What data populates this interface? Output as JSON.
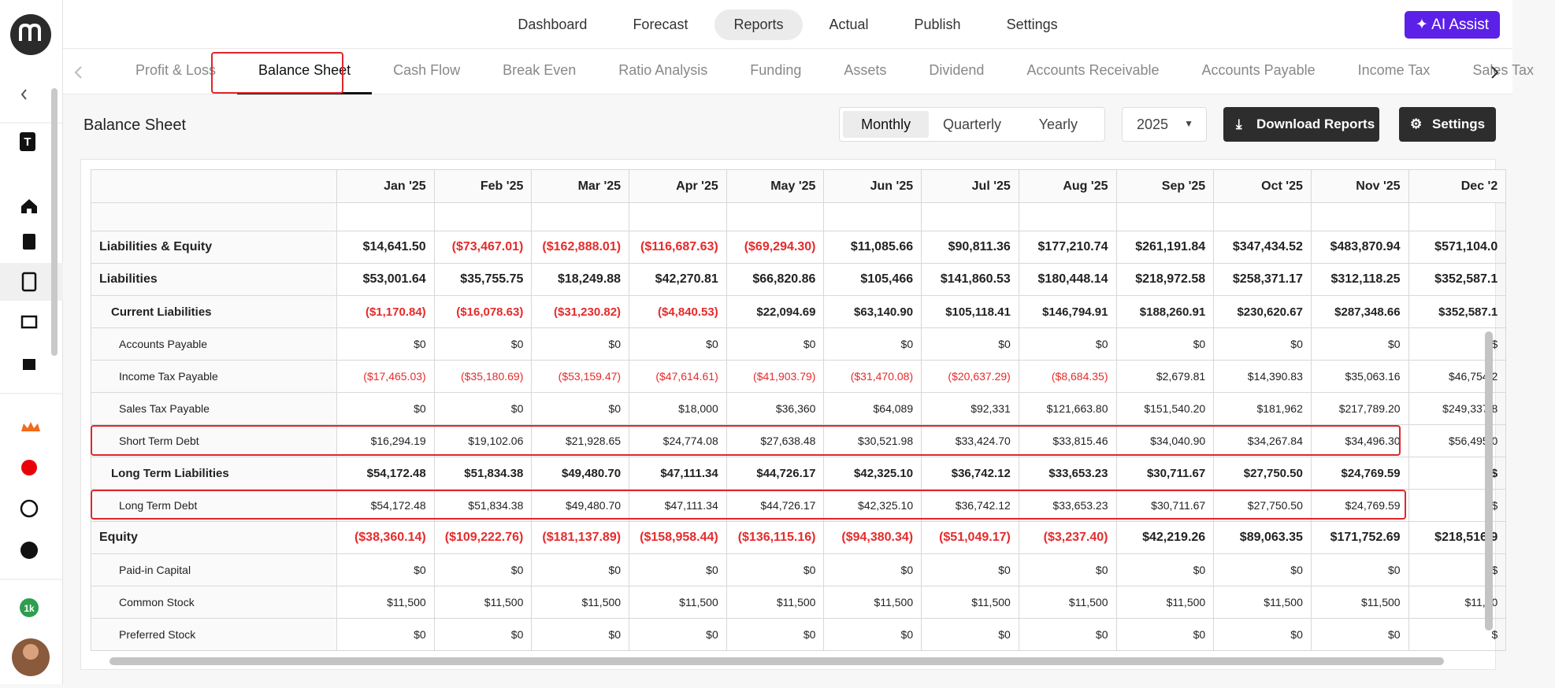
{
  "nav": [
    "Dashboard",
    "Forecast",
    "Reports",
    "Actual",
    "Publish",
    "Settings"
  ],
  "active_nav": 2,
  "ai_assist": "AI Assist",
  "sidebar": {
    "workspace": "T",
    "badge": "1k"
  },
  "tabs": [
    "Profit & Loss",
    "Balance Sheet",
    "Cash Flow",
    "Break Even",
    "Ratio Analysis",
    "Funding",
    "Assets",
    "Dividend",
    "Accounts Receivable",
    "Accounts Payable",
    "Income Tax",
    "Sales Tax"
  ],
  "active_tab": 1,
  "page_title": "Balance Sheet",
  "periods": [
    "Monthly",
    "Quarterly",
    "Yearly"
  ],
  "active_period": 0,
  "year": "2025",
  "download_button": "Download Reports",
  "settings_button": "Settings",
  "table": {
    "columns": [
      "Jan '25",
      "Feb '25",
      "Mar '25",
      "Apr '25",
      "May '25",
      "Jun '25",
      "Jul '25",
      "Aug '25",
      "Sep '25",
      "Oct '25",
      "Nov '25",
      "Dec '2"
    ],
    "rows": [
      {
        "label": "Liabilities & Equity",
        "level": 0,
        "cells": [
          "$14,641.50",
          "($73,467.01)",
          "($162,888.01)",
          "($116,687.63)",
          "($69,294.30)",
          "$11,085.66",
          "$90,811.36",
          "$177,210.74",
          "$261,191.84",
          "$347,434.52",
          "$483,870.94",
          "$571,104.0"
        ]
      },
      {
        "label": "Liabilities",
        "level": 0,
        "cells": [
          "$53,001.64",
          "$35,755.75",
          "$18,249.88",
          "$42,270.81",
          "$66,820.86",
          "$105,466",
          "$141,860.53",
          "$180,448.14",
          "$218,972.58",
          "$258,371.17",
          "$312,118.25",
          "$352,587.1"
        ]
      },
      {
        "label": "Current Liabilities",
        "level": 1,
        "cells": [
          "($1,170.84)",
          "($16,078.63)",
          "($31,230.82)",
          "($4,840.53)",
          "$22,094.69",
          "$63,140.90",
          "$105,118.41",
          "$146,794.91",
          "$188,260.91",
          "$230,620.67",
          "$287,348.66",
          "$352,587.1"
        ]
      },
      {
        "label": "Accounts Payable",
        "level": 2,
        "cells": [
          "$0",
          "$0",
          "$0",
          "$0",
          "$0",
          "$0",
          "$0",
          "$0",
          "$0",
          "$0",
          "$0",
          "$"
        ]
      },
      {
        "label": "Income Tax Payable",
        "level": 2,
        "cells": [
          "($17,465.03)",
          "($35,180.69)",
          "($53,159.47)",
          "($47,614.61)",
          "($41,903.79)",
          "($31,470.08)",
          "($20,637.29)",
          "($8,684.35)",
          "$2,679.81",
          "$14,390.83",
          "$35,063.16",
          "$46,754.2"
        ]
      },
      {
        "label": "Sales Tax Payable",
        "level": 2,
        "cells": [
          "$0",
          "$0",
          "$0",
          "$18,000",
          "$36,360",
          "$64,089",
          "$92,331",
          "$121,663.80",
          "$151,540.20",
          "$181,962",
          "$217,789.20",
          "$249,337.8"
        ]
      },
      {
        "label": "Short Term Debt",
        "level": 2,
        "cells": [
          "$16,294.19",
          "$19,102.06",
          "$21,928.65",
          "$24,774.08",
          "$27,638.48",
          "$30,521.98",
          "$33,424.70",
          "$33,815.46",
          "$34,040.90",
          "$34,267.84",
          "$34,496.30",
          "$56,495.0"
        ]
      },
      {
        "label": "Long Term Liabilities",
        "level": 1,
        "cells": [
          "$54,172.48",
          "$51,834.38",
          "$49,480.70",
          "$47,111.34",
          "$44,726.17",
          "$42,325.10",
          "$36,742.12",
          "$33,653.23",
          "$30,711.67",
          "$27,750.50",
          "$24,769.59",
          "$"
        ]
      },
      {
        "label": "Long Term Debt",
        "level": 2,
        "cells": [
          "$54,172.48",
          "$51,834.38",
          "$49,480.70",
          "$47,111.34",
          "$44,726.17",
          "$42,325.10",
          "$36,742.12",
          "$33,653.23",
          "$30,711.67",
          "$27,750.50",
          "$24,769.59",
          "$"
        ]
      },
      {
        "label": "Equity",
        "level": 0,
        "cells": [
          "($38,360.14)",
          "($109,222.76)",
          "($181,137.89)",
          "($158,958.44)",
          "($136,115.16)",
          "($94,380.34)",
          "($51,049.17)",
          "($3,237.40)",
          "$42,219.26",
          "$89,063.35",
          "$171,752.69",
          "$218,516.9"
        ]
      },
      {
        "label": "Paid-in Capital",
        "level": 2,
        "cells": [
          "$0",
          "$0",
          "$0",
          "$0",
          "$0",
          "$0",
          "$0",
          "$0",
          "$0",
          "$0",
          "$0",
          "$"
        ]
      },
      {
        "label": "Common Stock",
        "level": 2,
        "cells": [
          "$11,500",
          "$11,500",
          "$11,500",
          "$11,500",
          "$11,500",
          "$11,500",
          "$11,500",
          "$11,500",
          "$11,500",
          "$11,500",
          "$11,500",
          "$11,50"
        ]
      },
      {
        "label": "Preferred Stock",
        "level": 2,
        "cells": [
          "$0",
          "$0",
          "$0",
          "$0",
          "$0",
          "$0",
          "$0",
          "$0",
          "$0",
          "$0",
          "$0",
          "$"
        ]
      }
    ]
  }
}
